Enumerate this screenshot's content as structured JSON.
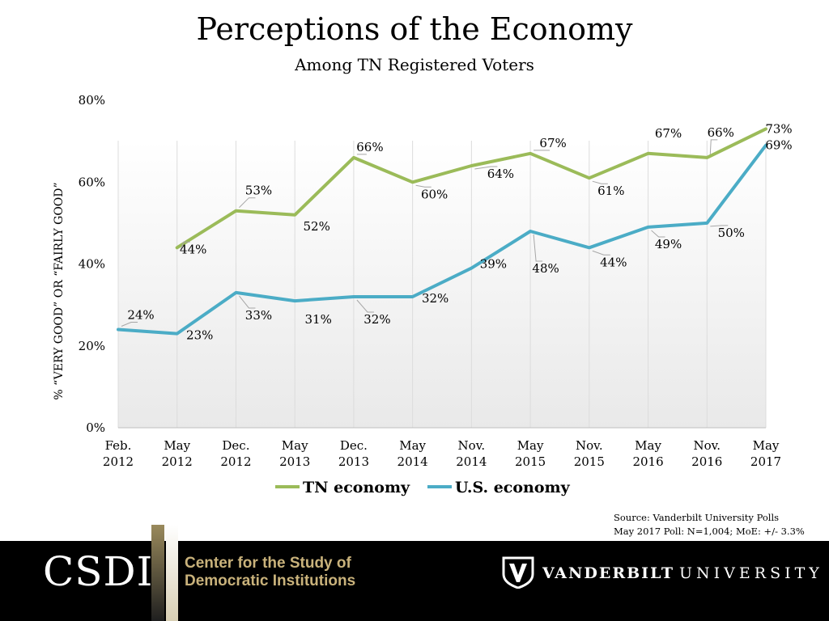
{
  "chart_data": {
    "type": "line",
    "title": "Perceptions of the Economy",
    "subtitle": "Among TN Registered Voters",
    "ylabel": "% “VERY GOOD” OR “FAIRLY GOOD”",
    "xlabel": "",
    "ylim": [
      0,
      80
    ],
    "yticks": [
      "0%",
      "20%",
      "40%",
      "60%",
      "80%"
    ],
    "categories": [
      [
        "Feb.",
        "2012"
      ],
      [
        "May",
        "2012"
      ],
      [
        "Dec.",
        "2012"
      ],
      [
        "May",
        "2013"
      ],
      [
        "Dec.",
        "2013"
      ],
      [
        "May",
        "2014"
      ],
      [
        "Nov.",
        "2014"
      ],
      [
        "May",
        "2015"
      ],
      [
        "Nov.",
        "2015"
      ],
      [
        "May",
        "2016"
      ],
      [
        "Nov.",
        "2016"
      ],
      [
        "May",
        "2017"
      ]
    ],
    "series": [
      {
        "name": "TN economy",
        "color": "#9bbb59",
        "values": [
          null,
          44,
          53,
          52,
          66,
          60,
          64,
          67,
          61,
          67,
          66,
          73
        ],
        "labels": [
          null,
          "44%",
          "53%",
          "52%",
          "66%",
          "60%",
          "64%",
          "67%",
          "61%",
          "67%",
          "66%",
          "73%"
        ]
      },
      {
        "name": "U.S. economy",
        "color": "#4bacc6",
        "values": [
          24,
          23,
          33,
          31,
          32,
          32,
          39,
          48,
          44,
          49,
          50,
          69
        ],
        "labels": [
          "24%",
          "23%",
          "33%",
          "31%",
          "32%",
          "32%",
          "39%",
          "48%",
          "44%",
          "49%",
          "50%",
          "69%"
        ]
      }
    ],
    "legend": "bottom",
    "grid": false
  },
  "source": {
    "line1": "Source: Vanderbilt University Polls",
    "line2": "May 2017 Poll: N=1,004; MoE: +/- 3.3%"
  },
  "footer": {
    "csdi_mark": "CSDI",
    "csdi_line1": "Center for the Study of",
    "csdi_line2": "Democratic Institutions",
    "vu_strong": "VANDERBILT",
    "vu_light": "UNIVERSITY"
  }
}
